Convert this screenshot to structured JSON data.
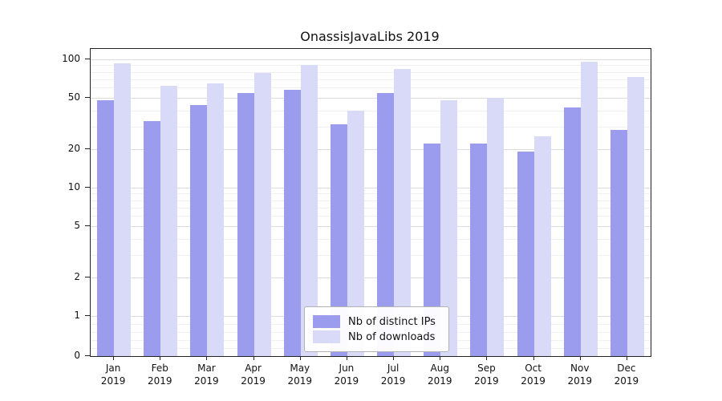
{
  "title": "OnassisJavaLibs 2019",
  "chart_data": {
    "type": "bar",
    "title": "OnassisJavaLibs 2019",
    "yscale": "symlog",
    "grid": true,
    "legend_position": "lower center",
    "y_ticks": [
      100,
      50,
      20,
      10,
      5,
      2,
      1,
      0
    ],
    "ylim": [
      0,
      120
    ],
    "year": "2019",
    "categories": [
      "Jan",
      "Feb",
      "Mar",
      "Apr",
      "May",
      "Jun",
      "Jul",
      "Aug",
      "Sep",
      "Oct",
      "Nov",
      "Dec"
    ],
    "series": [
      {
        "name": "Nb of distinct IPs",
        "color": "#9c9cee",
        "values": [
          48,
          33,
          44,
          55,
          58,
          31,
          55,
          22,
          22,
          19,
          42,
          28
        ]
      },
      {
        "name": "Nb of downloads",
        "color": "#d9d9f8",
        "values": [
          93,
          62,
          65,
          78,
          90,
          40,
          84,
          48,
          50,
          25,
          96,
          73
        ]
      }
    ]
  }
}
